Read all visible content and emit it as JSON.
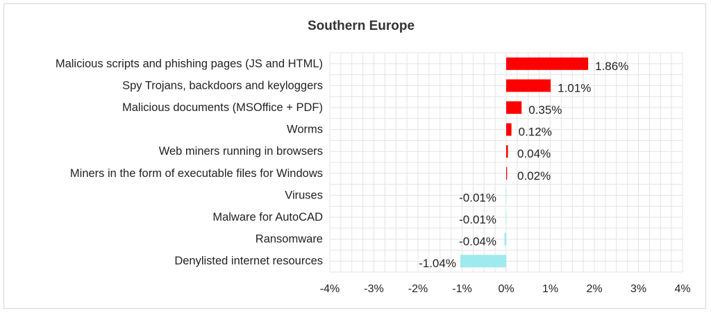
{
  "chart_data": {
    "type": "bar",
    "orientation": "horizontal",
    "title": "Southern Europe",
    "xlabel": "",
    "ylabel": "",
    "xlim": [
      -4,
      4
    ],
    "x_ticks": [
      "-4%",
      "-3%",
      "-2%",
      "-1%",
      "0%",
      "1%",
      "2%",
      "3%",
      "4%"
    ],
    "x_tick_values": [
      -4,
      -3,
      -2,
      -1,
      0,
      1,
      2,
      3,
      4
    ],
    "grid": true,
    "legend": "none",
    "colors": {
      "positive": "#ff0000",
      "negative": "#9eeaee",
      "grid": "#e3e3e3"
    },
    "categories": [
      "Malicious scripts and phishing pages (JS and HTML)",
      "Spy Trojans, backdoors and keyloggers",
      "Malicious documents (MSOffice + PDF)",
      "Worms",
      "Web miners running in browsers",
      "Miners in the form of executable files for Windows",
      "Viruses",
      "Malware for AutoCAD",
      "Ransomware",
      "Denylisted internet resources"
    ],
    "values": [
      1.86,
      1.01,
      0.35,
      0.12,
      0.04,
      0.02,
      -0.01,
      -0.01,
      -0.04,
      -1.04
    ],
    "value_labels": [
      "1.86%",
      "1.01%",
      "0.35%",
      "0.12%",
      "0.04%",
      "0.02%",
      "-0.01%",
      "-0.01%",
      "-0.04%",
      "-1.04%"
    ]
  }
}
